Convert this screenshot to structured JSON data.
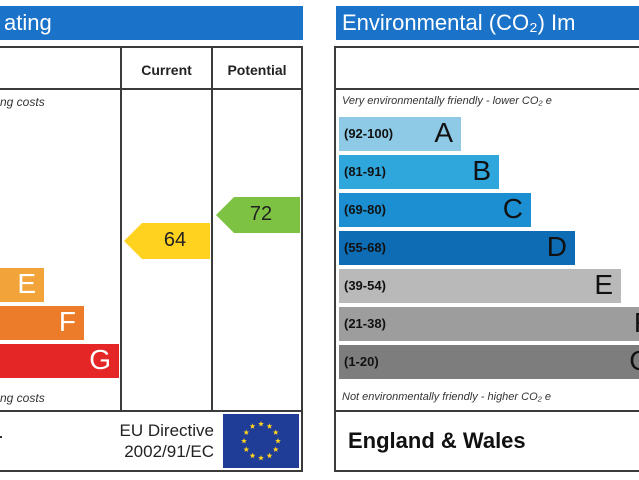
{
  "left": {
    "title": "ating",
    "col_current": "Current",
    "col_potential": "Potential",
    "top_note": "ng costs",
    "bottom_note": "ng costs",
    "eu_directive_line1": "EU Directive",
    "eu_directive_line2": "2002/91/EC",
    "eu_flag_icon": "eu-flag-icon"
  },
  "right": {
    "title": "Environmental (CO₂) Im",
    "top_note": "Very environmentally friendly - lower CO₂ e",
    "bottom_note": "Not environmentally friendly - higher CO₂ e",
    "footer": "England & Wales"
  },
  "chart_data": [
    {
      "type": "bar",
      "chart": "energy-efficiency-rating",
      "categories": [
        "E",
        "F",
        "G"
      ],
      "colors": [
        "#f2a33a",
        "#ec7b2a",
        "#e52626"
      ],
      "current": 64,
      "current_label": "64",
      "current_color": "#ffd21f",
      "potential": 72,
      "potential_label": "72",
      "potential_color": "#7ec243"
    },
    {
      "type": "bar",
      "chart": "environmental-impact-co2-rating",
      "categories": [
        "A",
        "B",
        "C",
        "D",
        "E",
        "F",
        "G"
      ],
      "ranges": [
        "(92-100)",
        "(81-91)",
        "(69-80)",
        "(55-68)",
        "(39-54)",
        "(21-38)",
        "(1-20)"
      ],
      "colors": [
        "#8ecae6",
        "#2fa7dd",
        "#1b8fd2",
        "#0e6cb5",
        "#b9b9b9",
        "#9d9d9d",
        "#7d7d7d"
      ]
    }
  ]
}
